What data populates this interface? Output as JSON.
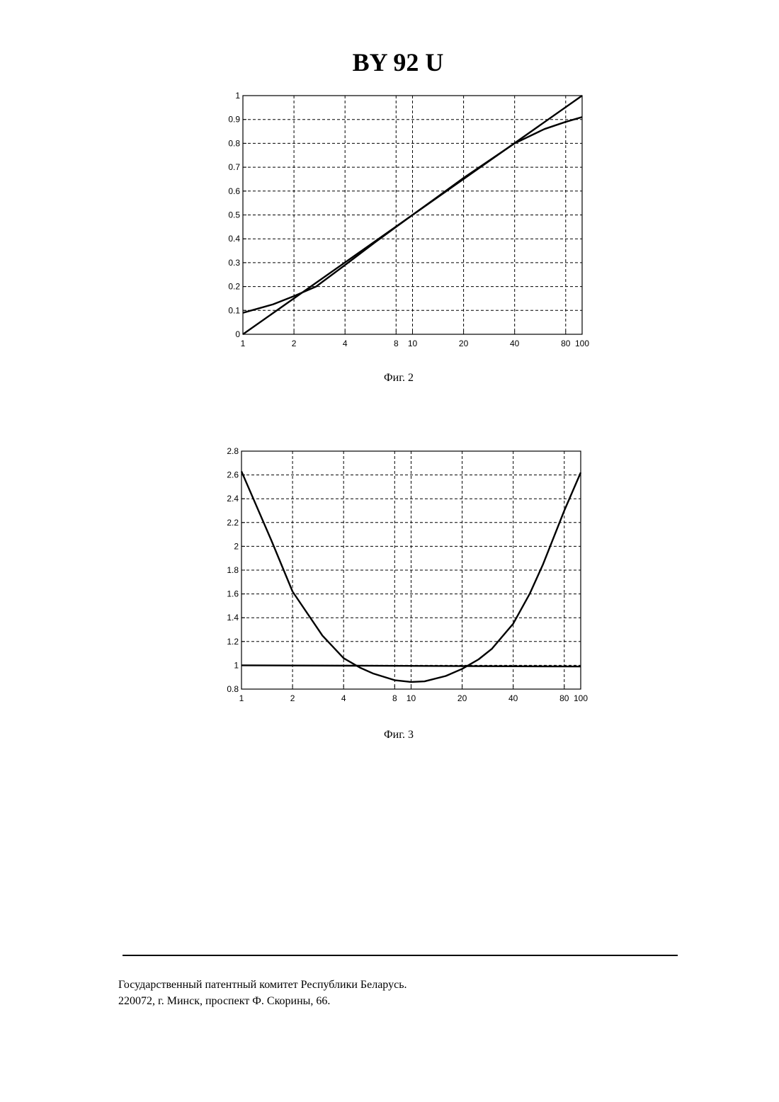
{
  "header": {
    "title": "BY 92 U"
  },
  "chart_data": [
    {
      "type": "line",
      "caption": "Фиг. 2",
      "xscale": "log",
      "grid": true,
      "xlim": [
        1,
        100
      ],
      "xticks": [
        1,
        2,
        4,
        8,
        10,
        20,
        40,
        80,
        100
      ],
      "ylim": [
        0,
        1
      ],
      "yticks": [
        0,
        0.1,
        0.2,
        0.3,
        0.4,
        0.5,
        0.6,
        0.7,
        0.8,
        0.9,
        1
      ],
      "series": [
        {
          "color": "#000000",
          "x": [
            1,
            100
          ],
          "values": [
            0,
            1
          ]
        },
        {
          "color": "#000000",
          "x": [
            1,
            1.5,
            2,
            2.7,
            4,
            6,
            8,
            10,
            14,
            20,
            30,
            40,
            60,
            80,
            100
          ],
          "values": [
            0.09,
            0.125,
            0.16,
            0.2,
            0.29,
            0.385,
            0.45,
            0.5,
            0.575,
            0.655,
            0.74,
            0.8,
            0.86,
            0.89,
            0.91
          ]
        }
      ]
    },
    {
      "type": "line",
      "caption": "Фиг. 3",
      "xscale": "log",
      "grid": true,
      "xlim": [
        1,
        100
      ],
      "xticks": [
        1,
        2,
        4,
        8,
        10,
        20,
        40,
        80,
        100
      ],
      "ylim": [
        0.8,
        2.8
      ],
      "yticks": [
        0.8,
        1,
        1.2,
        1.4,
        1.6,
        1.8,
        2,
        2.2,
        2.4,
        2.6,
        2.8
      ],
      "series": [
        {
          "color": "#000000",
          "x": [
            1,
            100
          ],
          "values": [
            1,
            0.99
          ]
        },
        {
          "color": "#000000",
          "x": [
            1,
            1.5,
            2,
            3,
            4,
            5,
            6,
            8,
            10,
            12,
            16,
            20,
            25,
            30,
            40,
            50,
            60,
            80,
            100
          ],
          "values": [
            2.63,
            2.05,
            1.62,
            1.25,
            1.06,
            0.98,
            0.93,
            0.875,
            0.86,
            0.865,
            0.91,
            0.97,
            1.05,
            1.14,
            1.35,
            1.6,
            1.85,
            2.3,
            2.62
          ]
        }
      ]
    }
  ],
  "footer": {
    "lines": [
      "Государственный патентный комитет Республики Беларусь.",
      "220072, г. Минск, проспект Ф. Скорины, 66."
    ]
  }
}
